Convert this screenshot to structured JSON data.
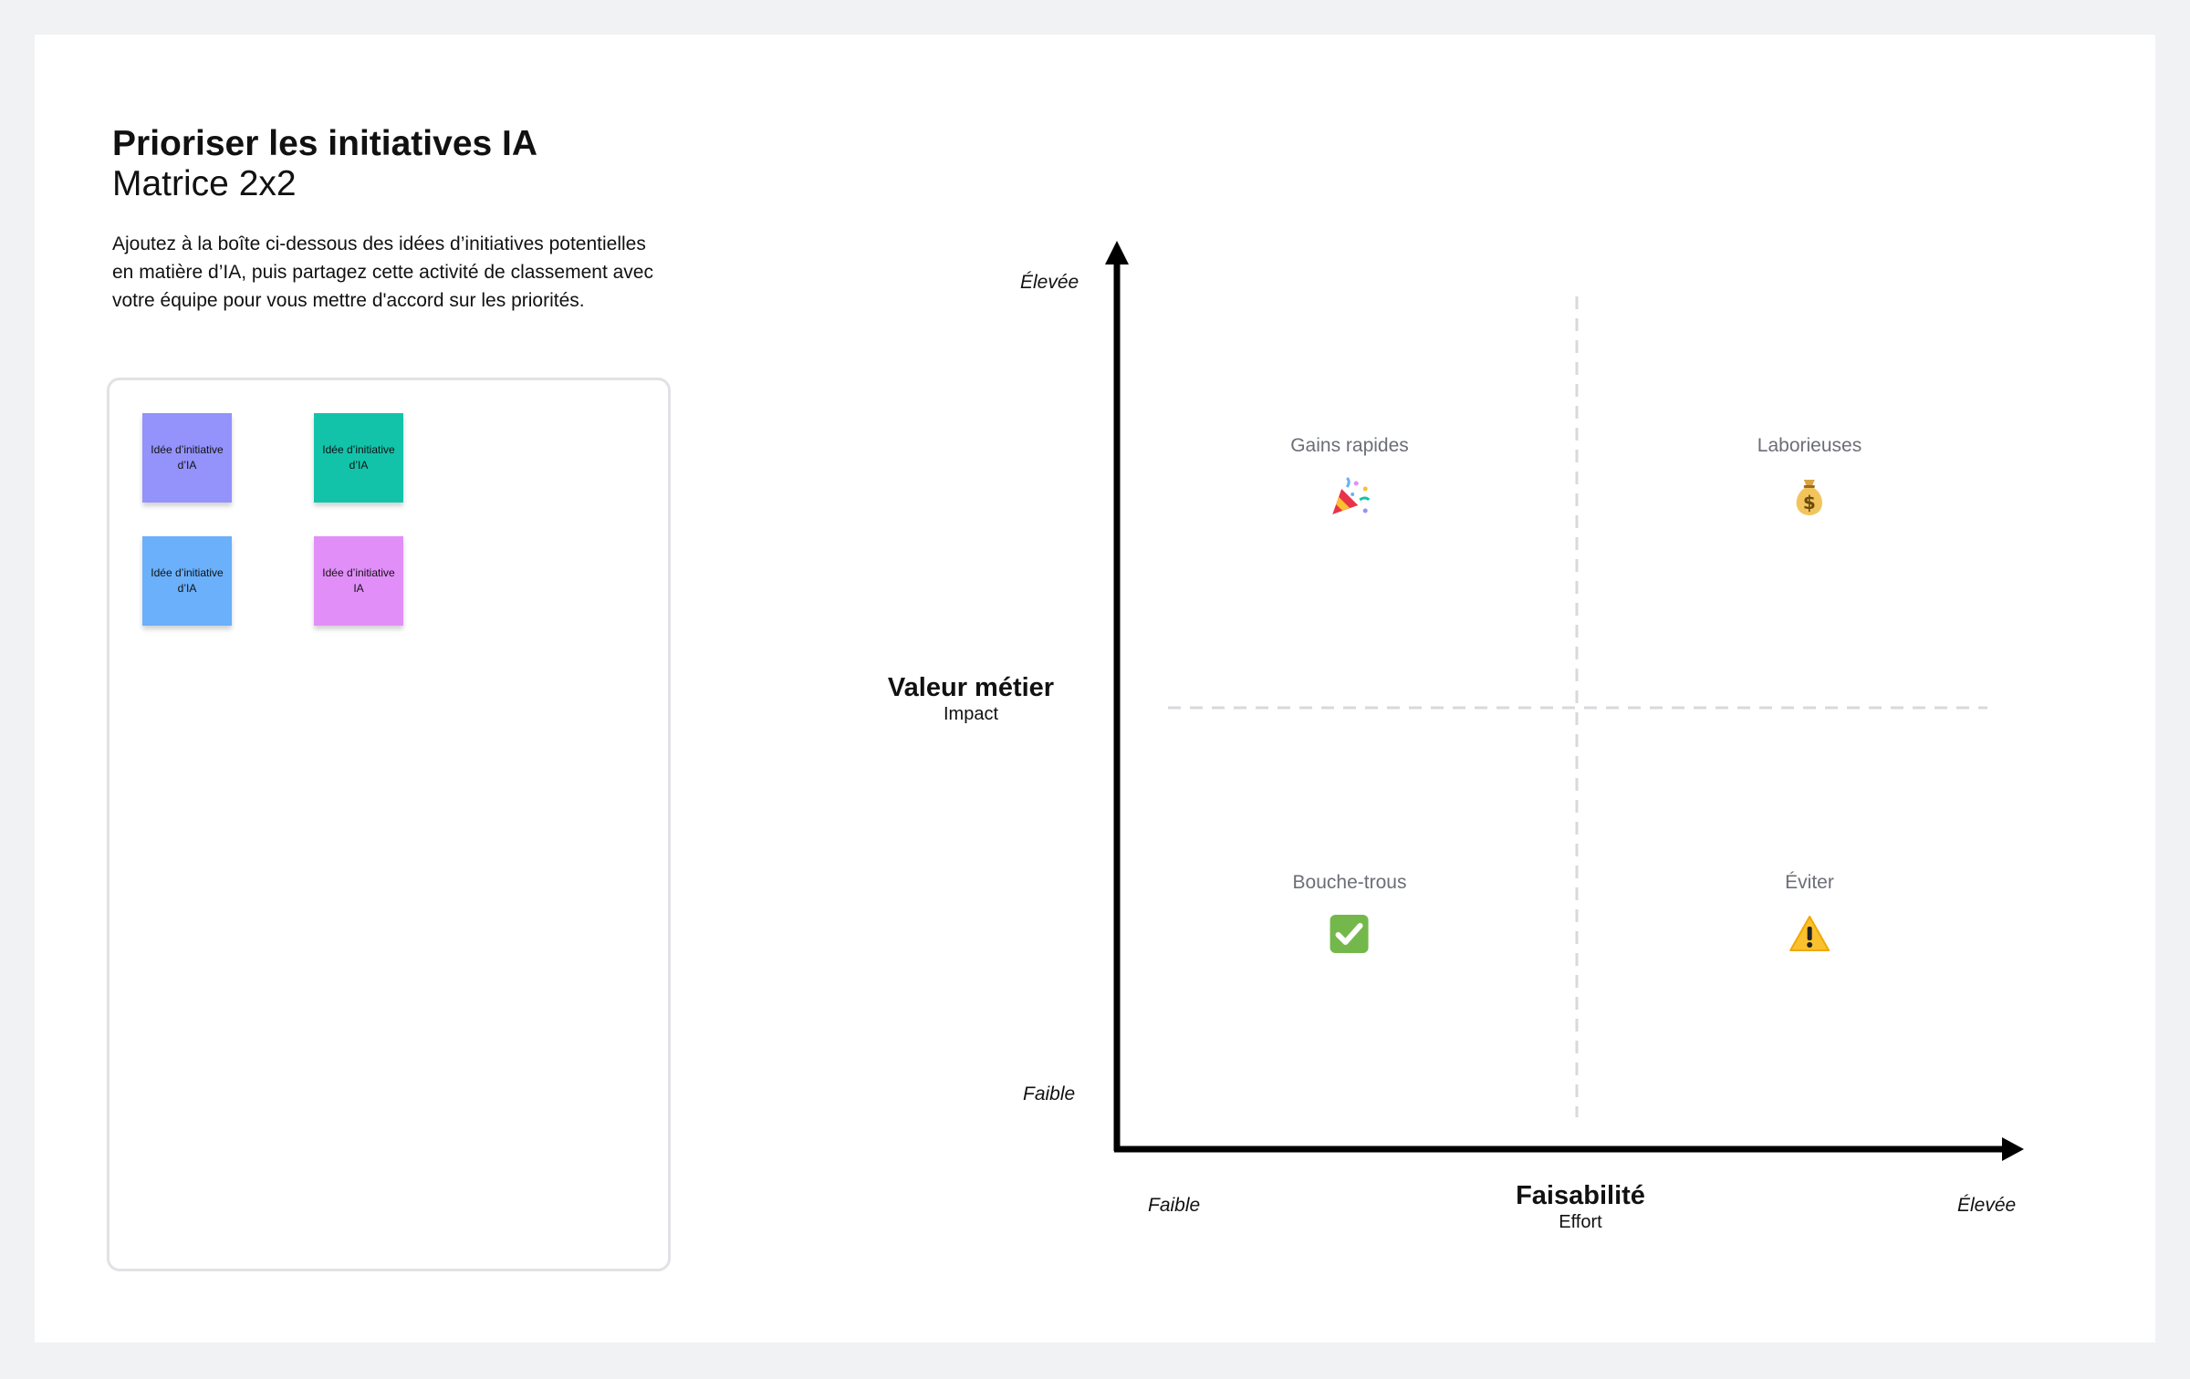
{
  "header": {
    "title": "Prioriser les initiatives IA",
    "subtitle": "Matrice 2x2",
    "description": "Ajoutez à la boîte ci-dessous des idées d’initiatives potentielles en matière d’IA, puis partagez cette activité de classement avec votre équipe pour vous mettre d'accord sur les priorités."
  },
  "ideas": {
    "stickies": [
      {
        "text": "Idée d’initiative d’IA",
        "color": "#9492fb"
      },
      {
        "text": "Idée d’initiative d’IA",
        "color": "#12c3aa"
      },
      {
        "text": "Idée d’initiative d’IA",
        "color": "#6ab0fb"
      },
      {
        "text": "Idée d’initiative IA",
        "color": "#e28ef9"
      }
    ]
  },
  "matrix": {
    "y_axis": {
      "title": "Valeur métier",
      "subtitle": "Impact",
      "high": "Élevée",
      "low": "Faible"
    },
    "x_axis": {
      "title": "Faisabilité",
      "subtitle": "Effort",
      "high": "Élevée",
      "low": "Faible"
    },
    "quadrants": {
      "top_left": {
        "label": "Gains rapides",
        "icon": "party-popper-icon"
      },
      "top_right": {
        "label": "Laborieuses",
        "icon": "money-bag-icon"
      },
      "bottom_left": {
        "label": "Bouche-trous",
        "icon": "check-mark-icon"
      },
      "bottom_right": {
        "label": "Éviter",
        "icon": "warning-icon"
      }
    }
  },
  "colors": {
    "background": "#f1f2f4",
    "axis": "#000000",
    "divider": "#d8d9dc",
    "quadrant_label": "#6b6e76"
  }
}
